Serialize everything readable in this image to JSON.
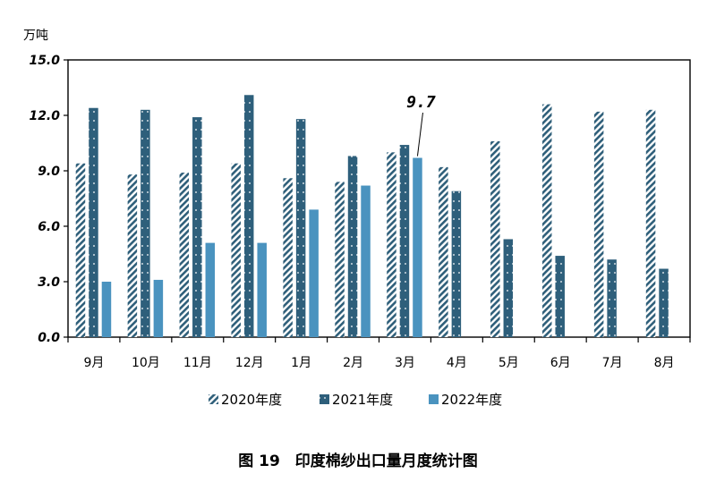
{
  "chart_data": {
    "type": "bar",
    "unit_label": "万吨",
    "caption": "图 19　印度棉纱出口量月度统计图",
    "categories": [
      "9月",
      "10月",
      "11月",
      "12月",
      "1月",
      "2月",
      "3月",
      "4月",
      "5月",
      "6月",
      "7月",
      "8月"
    ],
    "ylim": [
      0,
      15
    ],
    "yticks": [
      "0.0",
      "3.0",
      "6.0",
      "9.0",
      "12.0",
      "15.0"
    ],
    "grid": false,
    "legend_position": "bottom",
    "series": [
      {
        "name": "2020年度",
        "color": "#2f5f7a",
        "pattern": "diagonal-hatch",
        "values": [
          9.4,
          8.8,
          8.9,
          9.4,
          8.6,
          8.4,
          10.0,
          9.2,
          10.6,
          12.6,
          12.2,
          12.3
        ]
      },
      {
        "name": "2021年度",
        "color": "#2e5f7b",
        "pattern": "dotted",
        "values": [
          12.4,
          12.3,
          11.9,
          13.1,
          11.8,
          9.8,
          10.4,
          7.9,
          5.3,
          4.4,
          4.2,
          3.7
        ]
      },
      {
        "name": "2022年度",
        "color": "#4a93bf",
        "pattern": "solid",
        "values": [
          3.0,
          3.1,
          5.1,
          5.1,
          6.9,
          8.2,
          9.7,
          null,
          null,
          null,
          null,
          null
        ]
      }
    ],
    "annotations": [
      {
        "text": "9.7",
        "series": 2,
        "category": "3月"
      }
    ]
  }
}
